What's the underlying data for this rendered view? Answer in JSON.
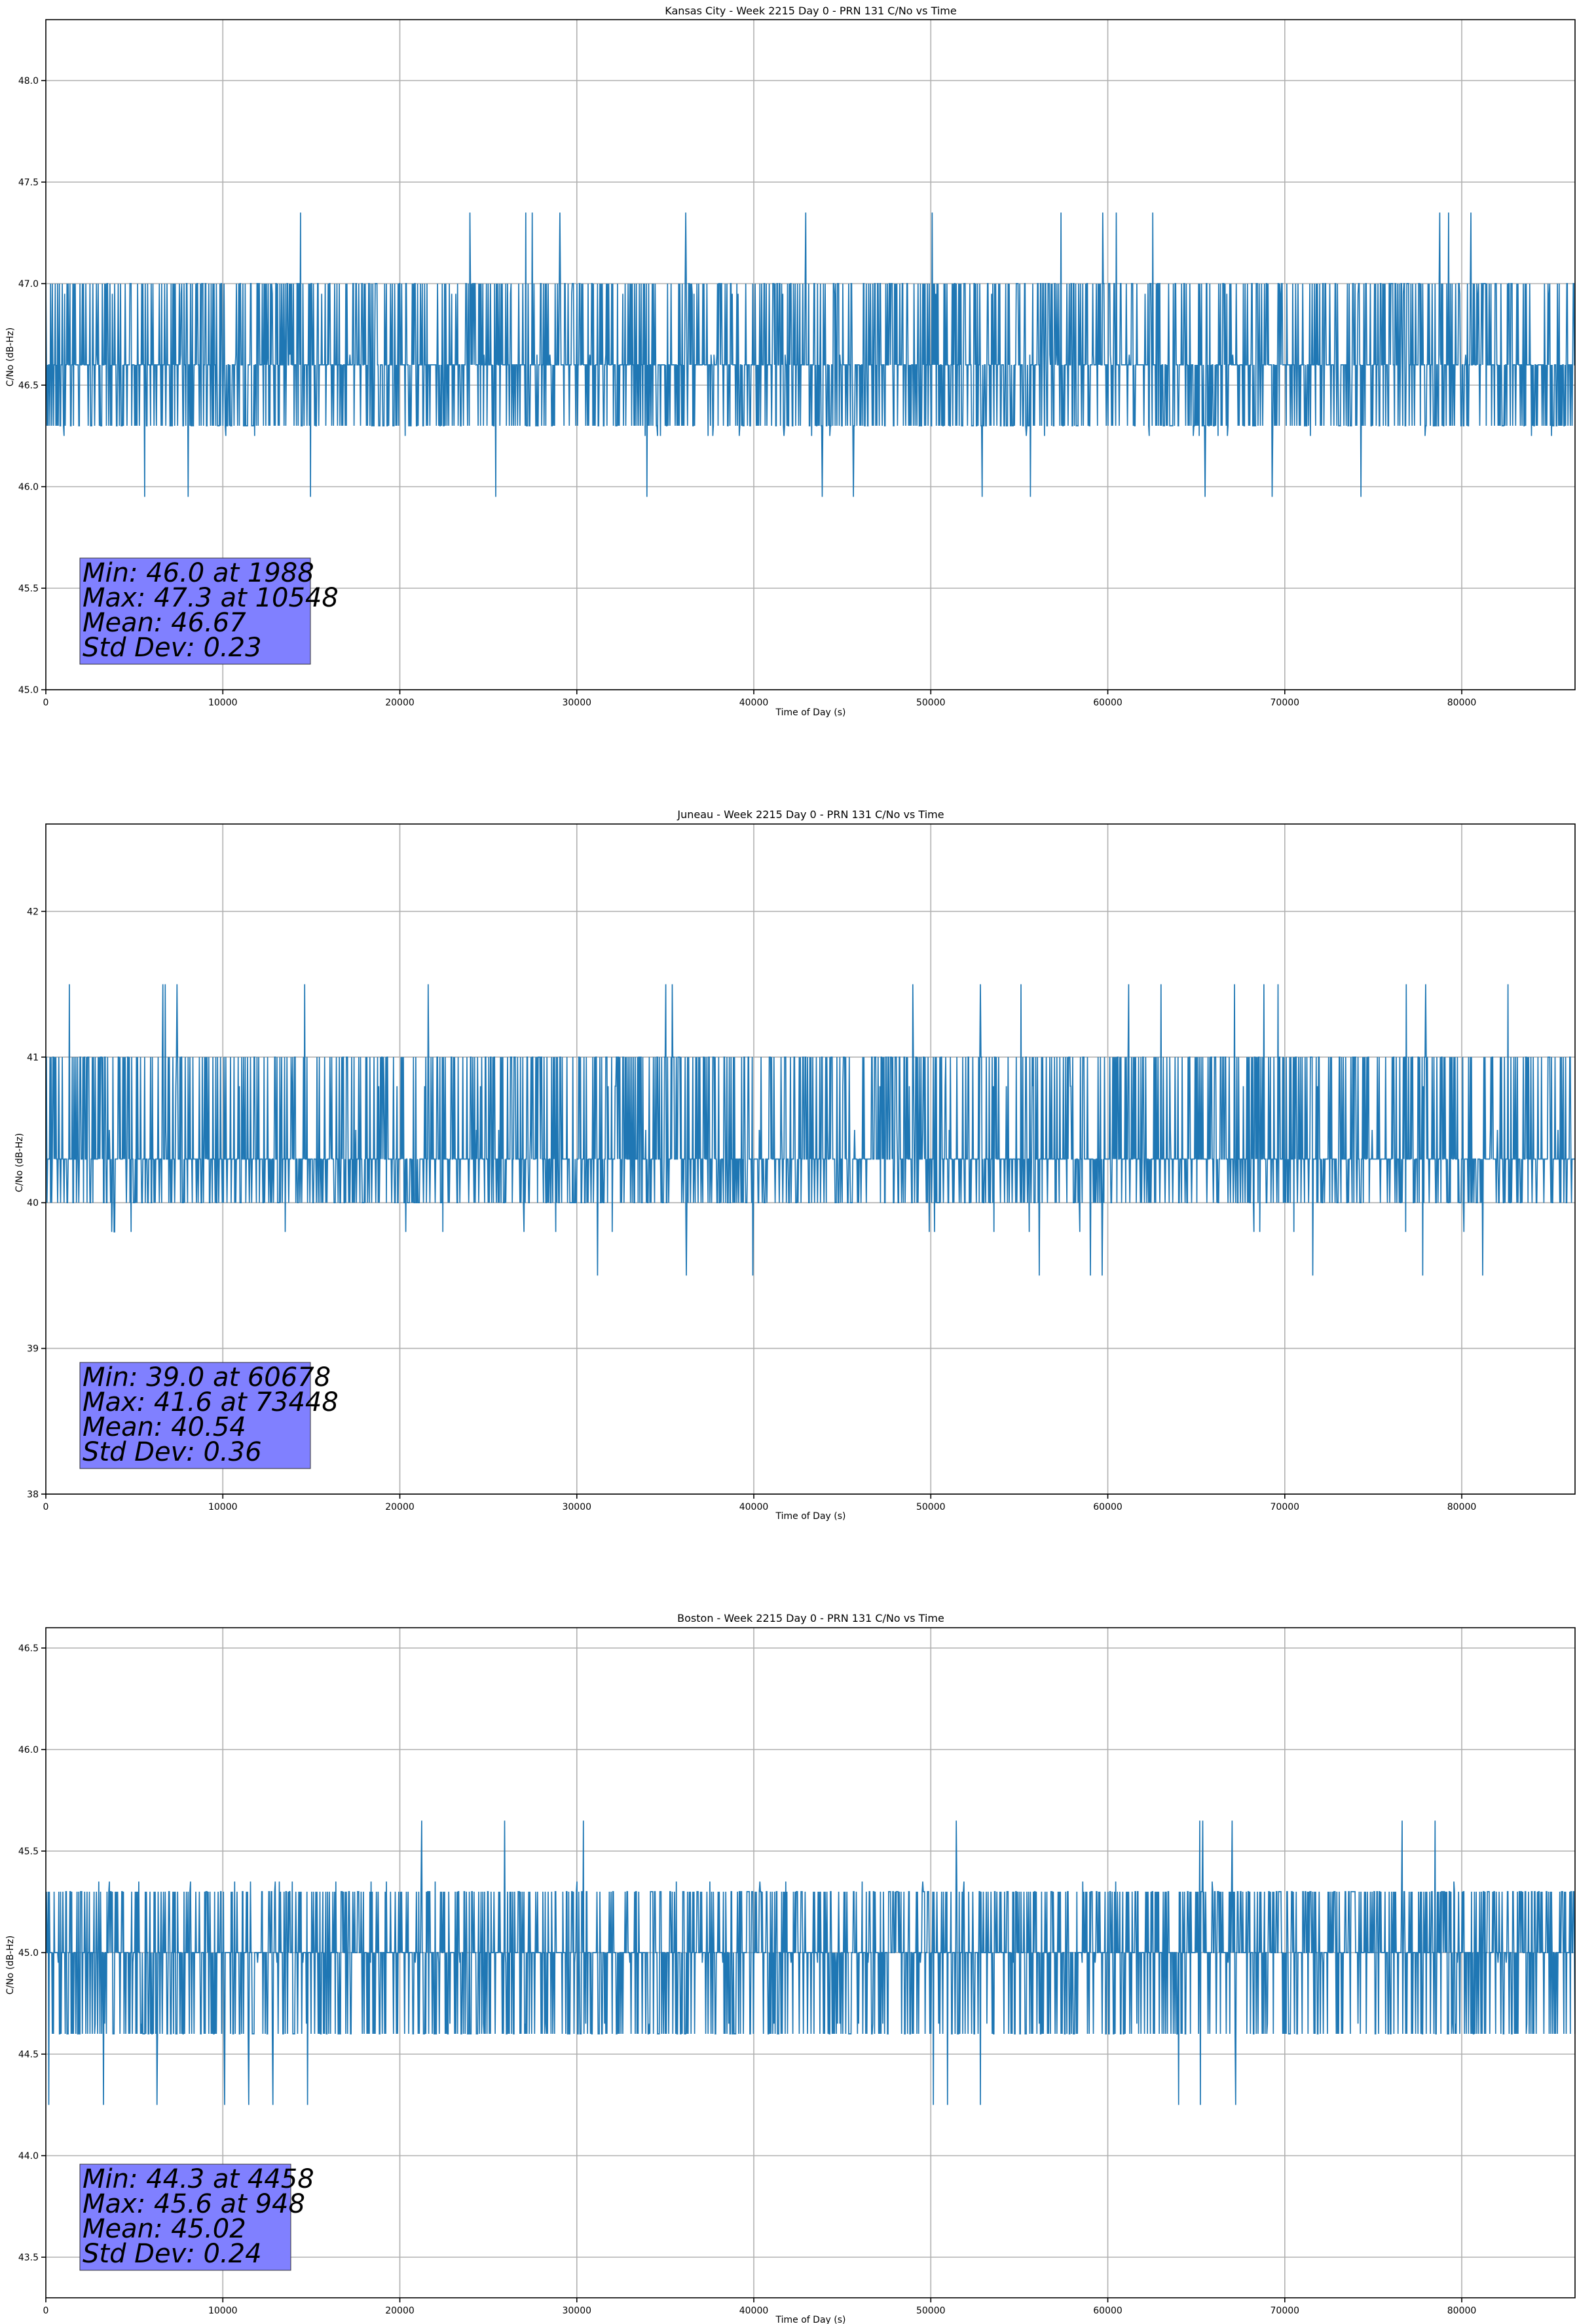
{
  "series_color": "#1f77b4",
  "stats_box_color": "#8080ff",
  "chart_data": [
    {
      "type": "line",
      "title": "Kansas City - Week 2215 Day 0 - PRN 131 C/No vs Time",
      "xlabel": "Time of Day (s)",
      "ylabel": "C/No (dB-Hz)",
      "xlim": [
        0,
        86400
      ],
      "ylim": [
        45.0,
        48.3
      ],
      "xticks": [
        0,
        10000,
        20000,
        30000,
        40000,
        50000,
        60000,
        70000,
        80000
      ],
      "yticks": [
        "45.0",
        "45.5",
        "46.0",
        "46.5",
        "47.0",
        "47.5",
        "48.0"
      ],
      "grid": true,
      "series": [
        {
          "name": "C/No",
          "x": [
            0,
            2000,
            4000,
            6000,
            8000,
            10548,
            12000,
            14000,
            16000,
            18000,
            20000,
            22000,
            24000,
            26000,
            28000,
            30000,
            32000,
            34000,
            36000,
            38000,
            40000,
            42000,
            44000,
            46000,
            48000,
            50000,
            52000,
            54000,
            56000,
            58000,
            60000,
            62000,
            64000,
            66000,
            68000,
            70000,
            72000,
            74000,
            76000,
            78000,
            80000,
            82000,
            84000,
            86400
          ],
          "values": [
            46.45,
            46.4,
            46.45,
            46.55,
            46.75,
            46.8,
            46.85,
            46.85,
            46.9,
            46.9,
            46.9,
            46.8,
            46.75,
            46.75,
            46.7,
            46.45,
            46.5,
            46.55,
            46.65,
            46.7,
            46.8,
            46.8,
            46.75,
            46.75,
            46.7,
            46.7,
            46.6,
            46.55,
            46.6,
            46.65,
            46.7,
            46.7,
            46.65,
            46.6,
            46.6,
            46.75,
            46.85,
            46.85,
            46.85,
            46.8,
            46.6,
            46.45,
            46.45,
            46.45
          ]
        }
      ],
      "band": {
        "low": 46.3,
        "mid": 46.6,
        "high": 47.0
      },
      "stats": {
        "min": "Min: 46.0 at 1988",
        "max": "Max: 47.3 at 10548",
        "mean": "Mean: 46.67",
        "std": "Std Dev: 0.23"
      }
    },
    {
      "type": "line",
      "title": "Juneau - Week 2215 Day 0 - PRN 131 C/No vs Time",
      "xlabel": "Time of Day (s)",
      "ylabel": "C/No (dB-Hz)",
      "xlim": [
        0,
        86400
      ],
      "ylim": [
        38.0,
        42.6
      ],
      "xticks": [
        0,
        10000,
        20000,
        30000,
        40000,
        50000,
        60000,
        70000,
        80000
      ],
      "yticks": [
        "38",
        "39",
        "40",
        "41",
        "42"
      ],
      "grid": true,
      "series": [
        {
          "name": "C/No",
          "x": [
            0,
            2000,
            4000,
            6000,
            8000,
            10000,
            12000,
            14000,
            16000,
            18000,
            20000,
            22000,
            24000,
            26000,
            28000,
            30000,
            32000,
            34000,
            36000,
            38000,
            40000,
            42000,
            44000,
            46000,
            48000,
            50000,
            52000,
            54000,
            56000,
            58000,
            60678,
            62000,
            64000,
            66000,
            68000,
            70000,
            72000,
            73448,
            76000,
            78000,
            80000,
            82000,
            84000,
            86400
          ],
          "values": [
            40.2,
            40.3,
            40.4,
            40.6,
            40.7,
            40.8,
            40.9,
            40.9,
            40.8,
            40.7,
            40.6,
            40.5,
            40.4,
            40.35,
            40.4,
            40.6,
            40.8,
            40.8,
            40.7,
            40.7,
            40.75,
            40.6,
            40.1,
            40.1,
            40.5,
            40.55,
            40.6,
            40.65,
            40.6,
            40.4,
            39.6,
            39.8,
            40.1,
            40.25,
            40.3,
            40.5,
            40.7,
            40.8,
            40.85,
            40.9,
            40.8,
            40.7,
            40.65,
            40.6
          ]
        }
      ],
      "band": {
        "low": 40.0,
        "mid": 40.3,
        "high": 41.0
      },
      "stats": {
        "min": "Min: 39.0 at 60678",
        "max": "Max: 41.6 at 73448",
        "mean": "Mean: 40.54",
        "std": "Std Dev: 0.36"
      }
    },
    {
      "type": "line",
      "title": "Boston - Week 2215 Day 0 - PRN 131 C/No vs Time",
      "xlabel": "Time of Day (s)",
      "ylabel": "C/No (dB-Hz)",
      "xlim": [
        0,
        86400
      ],
      "ylim": [
        43.3,
        46.6
      ],
      "xticks": [
        0,
        10000,
        20000,
        30000,
        40000,
        50000,
        60000,
        70000,
        80000
      ],
      "yticks": [
        "43.5",
        "44.0",
        "44.5",
        "45.0",
        "45.5",
        "46.0",
        "46.5"
      ],
      "grid": true,
      "series": [
        {
          "name": "C/No",
          "x": [
            0,
            948,
            2000,
            4458,
            6000,
            8000,
            10000,
            12000,
            14000,
            16000,
            18000,
            20000,
            22000,
            24000,
            26000,
            28000,
            30000,
            32000,
            34000,
            36000,
            38000,
            40000,
            42000,
            44000,
            46000,
            48000,
            50000,
            52000,
            54000,
            56000,
            58000,
            60000,
            62000,
            64000,
            66000,
            68000,
            70000,
            72000,
            74000,
            76000,
            78000,
            80000,
            82000,
            84000,
            86400
          ],
          "values": [
            45.0,
            45.1,
            44.95,
            44.85,
            44.9,
            45.05,
            45.25,
            45.3,
            45.3,
            45.25,
            45.2,
            45.2,
            45.15,
            45.15,
            45.1,
            45.2,
            45.25,
            45.3,
            45.3,
            45.25,
            45.1,
            44.85,
            44.85,
            44.9,
            44.85,
            44.85,
            44.9,
            44.9,
            44.95,
            45.0,
            45.05,
            45.05,
            45.0,
            44.9,
            44.8,
            44.8,
            44.75,
            44.8,
            44.85,
            44.85,
            44.85,
            44.9,
            44.85,
            44.8,
            44.8
          ]
        }
      ],
      "band": {
        "low": 44.6,
        "mid": 45.0,
        "high": 45.3
      },
      "stats": {
        "min": "Min: 44.3 at 4458",
        "max": "Max: 45.6 at 948",
        "mean": "Mean: 45.02",
        "std": "Std Dev: 0.24"
      }
    }
  ]
}
